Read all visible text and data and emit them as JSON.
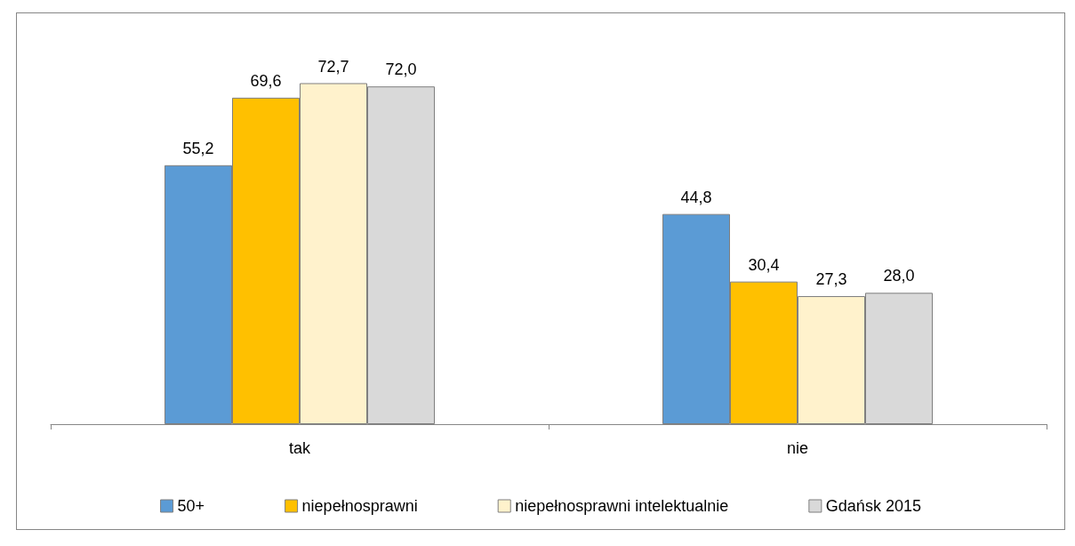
{
  "chart_data": {
    "type": "bar",
    "categories": [
      "tak",
      "nie"
    ],
    "series": [
      {
        "name": "50+",
        "color": "#5b9bd5",
        "values": [
          55.2,
          44.8
        ],
        "value_labels": [
          "55,2",
          "44,8"
        ]
      },
      {
        "name": "niepełnosprawni",
        "color": "#ffc000",
        "values": [
          69.6,
          30.4
        ],
        "value_labels": [
          "69,6",
          "30,4"
        ]
      },
      {
        "name": "niepełnosprawni intelektualnie",
        "color": "#fff2cc",
        "values": [
          72.7,
          27.3
        ],
        "value_labels": [
          "72,7",
          "27,3"
        ]
      },
      {
        "name": "Gdańsk 2015",
        "color": "#d9d9d9",
        "values": [
          72.0,
          28.0
        ],
        "value_labels": [
          "72,0",
          "28,0"
        ]
      }
    ],
    "legend": "bottom",
    "grid": false
  }
}
